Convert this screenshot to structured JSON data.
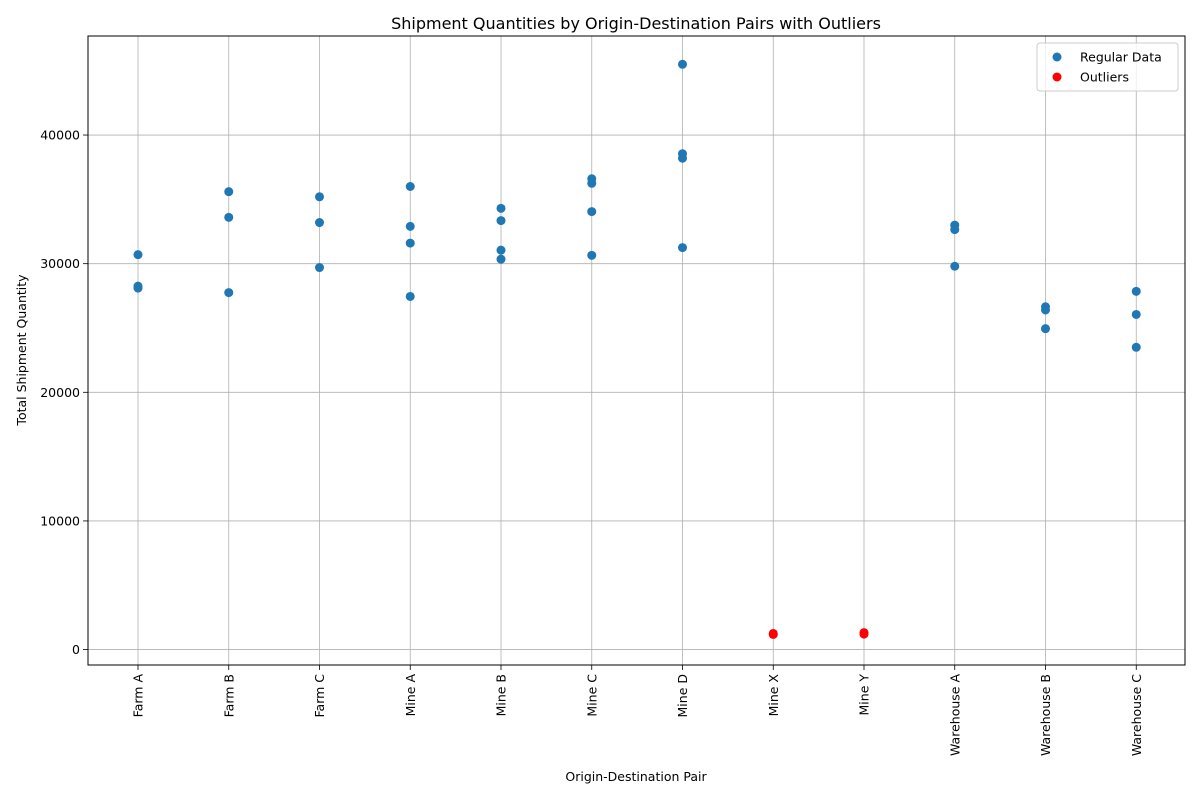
{
  "chart_data": {
    "type": "scatter",
    "title": "Shipment Quantities by Origin-Destination Pairs with Outliers",
    "xlabel": "Origin-Destination Pair",
    "ylabel": "Total Shipment Quantity",
    "categories": [
      "Farm A",
      "Farm B",
      "Farm C",
      "Mine A",
      "Mine B",
      "Mine C",
      "Mine D",
      "Mine X",
      "Mine Y",
      "Warehouse A",
      "Warehouse B",
      "Warehouse C"
    ],
    "ylim": [
      -1200,
      47700
    ],
    "yticks": [
      0,
      10000,
      20000,
      30000,
      40000
    ],
    "grid": true,
    "legend_position": "top-right",
    "series": [
      {
        "name": "Regular Data",
        "color": "#1f77b4",
        "points": [
          {
            "x": "Farm A",
            "y": 30700
          },
          {
            "x": "Farm A",
            "y": 28250
          },
          {
            "x": "Farm A",
            "y": 28100
          },
          {
            "x": "Farm B",
            "y": 35600
          },
          {
            "x": "Farm B",
            "y": 33600
          },
          {
            "x": "Farm B",
            "y": 27750
          },
          {
            "x": "Farm C",
            "y": 35200
          },
          {
            "x": "Farm C",
            "y": 33200
          },
          {
            "x": "Farm C",
            "y": 29700
          },
          {
            "x": "Mine A",
            "y": 36000
          },
          {
            "x": "Mine A",
            "y": 32900
          },
          {
            "x": "Mine A",
            "y": 31600
          },
          {
            "x": "Mine A",
            "y": 27450
          },
          {
            "x": "Mine B",
            "y": 34300
          },
          {
            "x": "Mine B",
            "y": 33350
          },
          {
            "x": "Mine B",
            "y": 31050
          },
          {
            "x": "Mine B",
            "y": 30350
          },
          {
            "x": "Mine C",
            "y": 36600
          },
          {
            "x": "Mine C",
            "y": 36250
          },
          {
            "x": "Mine C",
            "y": 34050
          },
          {
            "x": "Mine C",
            "y": 30650
          },
          {
            "x": "Mine D",
            "y": 45500
          },
          {
            "x": "Mine D",
            "y": 38550
          },
          {
            "x": "Mine D",
            "y": 38200
          },
          {
            "x": "Mine D",
            "y": 31250
          },
          {
            "x": "Warehouse A",
            "y": 33000
          },
          {
            "x": "Warehouse A",
            "y": 32650
          },
          {
            "x": "Warehouse A",
            "y": 29800
          },
          {
            "x": "Warehouse B",
            "y": 26650
          },
          {
            "x": "Warehouse B",
            "y": 26400
          },
          {
            "x": "Warehouse B",
            "y": 24950
          },
          {
            "x": "Warehouse C",
            "y": 27850
          },
          {
            "x": "Warehouse C",
            "y": 26050
          },
          {
            "x": "Warehouse C",
            "y": 23500
          }
        ]
      },
      {
        "name": "Outliers",
        "color": "#ff0000",
        "points": [
          {
            "x": "Mine X",
            "y": 1250
          },
          {
            "x": "Mine X",
            "y": 1180
          },
          {
            "x": "Mine Y",
            "y": 1320
          },
          {
            "x": "Mine Y",
            "y": 1200
          }
        ]
      }
    ]
  }
}
